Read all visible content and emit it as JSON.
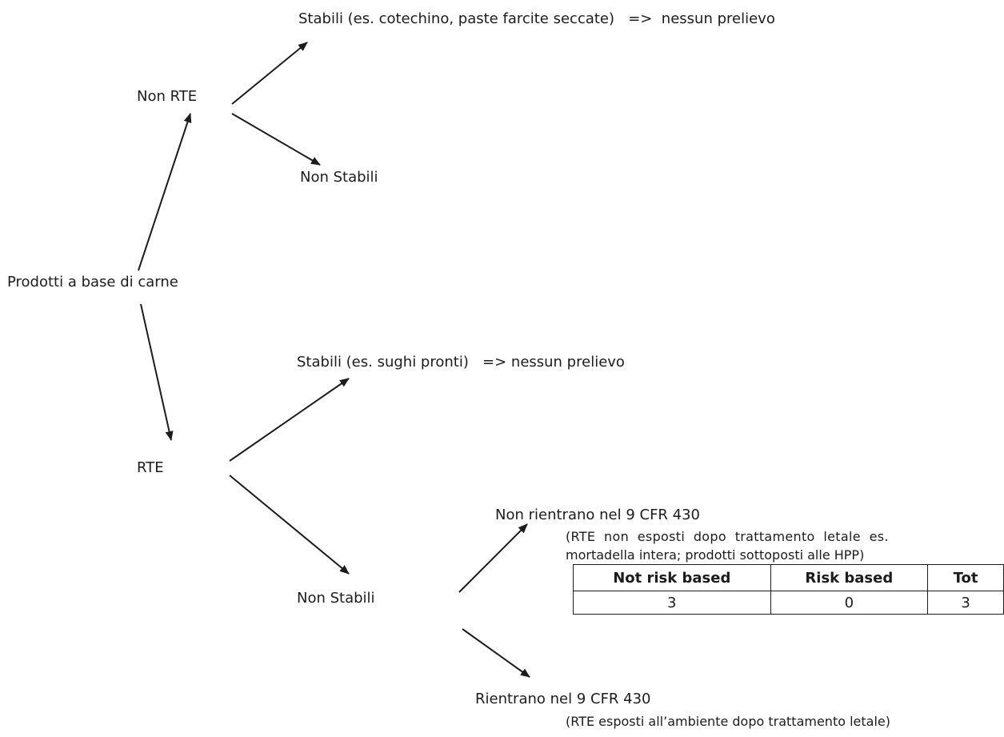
{
  "nodes": {
    "root": "Prodotti a base di carne",
    "non_rte": "Non RTE",
    "non_rte_stabili": "Stabili (es. cotechino, paste farcite seccate)   =>  nessun prelievo",
    "non_rte_non_stabili": "Non Stabili",
    "rte": "RTE",
    "rte_stabili": "Stabili (es. sughi pronti)   => nessun prelievo",
    "rte_non_stabili": "Non Stabili",
    "non_rientrano": "Non rientrano nel 9 CFR 430",
    "non_rientrano_note_line1": "(RTE  non  esposti  dopo  trattamento  letale  es.",
    "non_rientrano_note_line2": "mortadella intera; prodotti sottoposti alle HPP)",
    "rientrano": "Rientrano nel 9 CFR 430",
    "rientrano_note": "(RTE esposti all’ambiente dopo trattamento letale)"
  },
  "table": {
    "headers": [
      "Not risk based",
      "Risk based",
      "Tot"
    ],
    "row": [
      "3",
      "0",
      "3"
    ]
  },
  "colors": {
    "ink": "#1c1c1c",
    "background": "#ffffff"
  }
}
